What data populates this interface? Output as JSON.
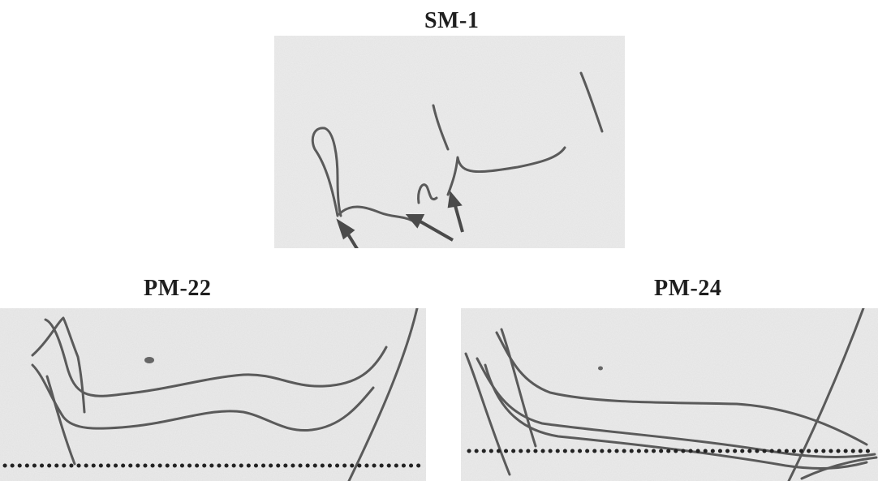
{
  "panels": {
    "sm1": {
      "label": "SM-1"
    },
    "pm22": {
      "label": "PM-22"
    },
    "pm24": {
      "label": "PM-24"
    }
  },
  "colors": {
    "background": "#ffffff",
    "paper": "#ececec",
    "trace": "#5a5a5a",
    "baseline": "#222222"
  }
}
